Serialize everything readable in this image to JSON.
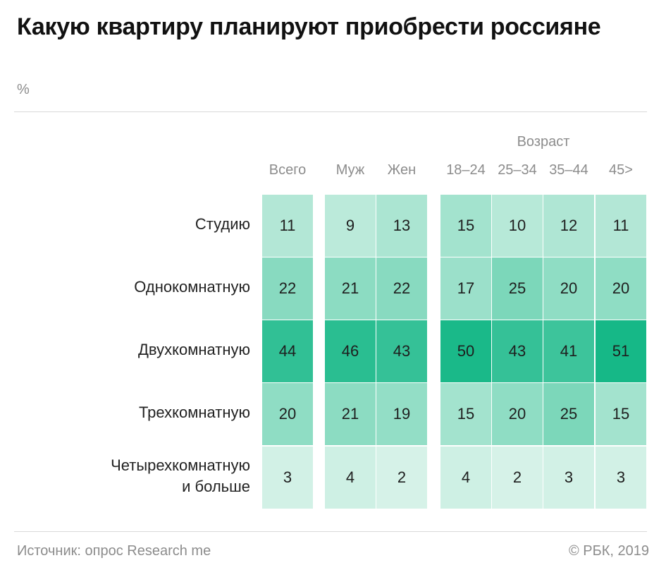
{
  "title": "Какую квартиру планируют приобрести россияне",
  "unit": "%",
  "source": "Источник: опрос Research me",
  "copyright": "© РБК, 2019",
  "chart_data": {
    "type": "heatmap",
    "title": "Какую квартиру планируют приобрести россияне",
    "unit": "%",
    "column_group_label": "Возраст",
    "columns": [
      "Всего",
      "Муж",
      "Жен",
      "18–24",
      "25–34",
      "35–44",
      "45>"
    ],
    "rows": [
      "Студию",
      "Однокомнатную",
      "Двухкомнатную",
      "Трехкомнатную",
      "Четырехкомнатную\nи больше"
    ],
    "values": [
      [
        11,
        9,
        13,
        15,
        10,
        12,
        11
      ],
      [
        22,
        21,
        22,
        17,
        25,
        20,
        20
      ],
      [
        44,
        46,
        43,
        50,
        43,
        41,
        51
      ],
      [
        20,
        21,
        19,
        15,
        20,
        25,
        15
      ],
      [
        3,
        4,
        2,
        4,
        2,
        3,
        3
      ]
    ],
    "color_low": "#d6f2e8",
    "color_high": "#16b887"
  }
}
